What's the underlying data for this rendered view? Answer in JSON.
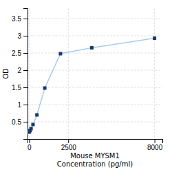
{
  "chart_data": {
    "type": "line",
    "xlabel": "Mouse MYSM1\nConcentration (pg/ml)",
    "ylabel": "OD",
    "x": [
      0,
      31.25,
      62.5,
      125,
      250,
      500,
      1000,
      2000,
      4000,
      8000
    ],
    "values": [
      0.2,
      0.22,
      0.25,
      0.3,
      0.42,
      0.7,
      1.48,
      2.48,
      2.65,
      2.93
    ],
    "color": "#aacce8",
    "colors": [
      "#1a3a6a",
      "#1a3a6a",
      "#1a3a6a",
      "#1a3a6a",
      "#1a3a6a",
      "#1a3a6a",
      "#1a3a6a",
      "#1a3a6a",
      "#1a3a6a",
      "#1a3a6a"
    ],
    "marker": "square",
    "xlim": [
      -100,
      8500
    ],
    "ylim": [
      0.0,
      3.8
    ],
    "xticks": [
      0,
      2500,
      8000
    ],
    "yticks": [
      0.5,
      1,
      1.5,
      2,
      2.5,
      3,
      3.5
    ],
    "grid": true
  }
}
